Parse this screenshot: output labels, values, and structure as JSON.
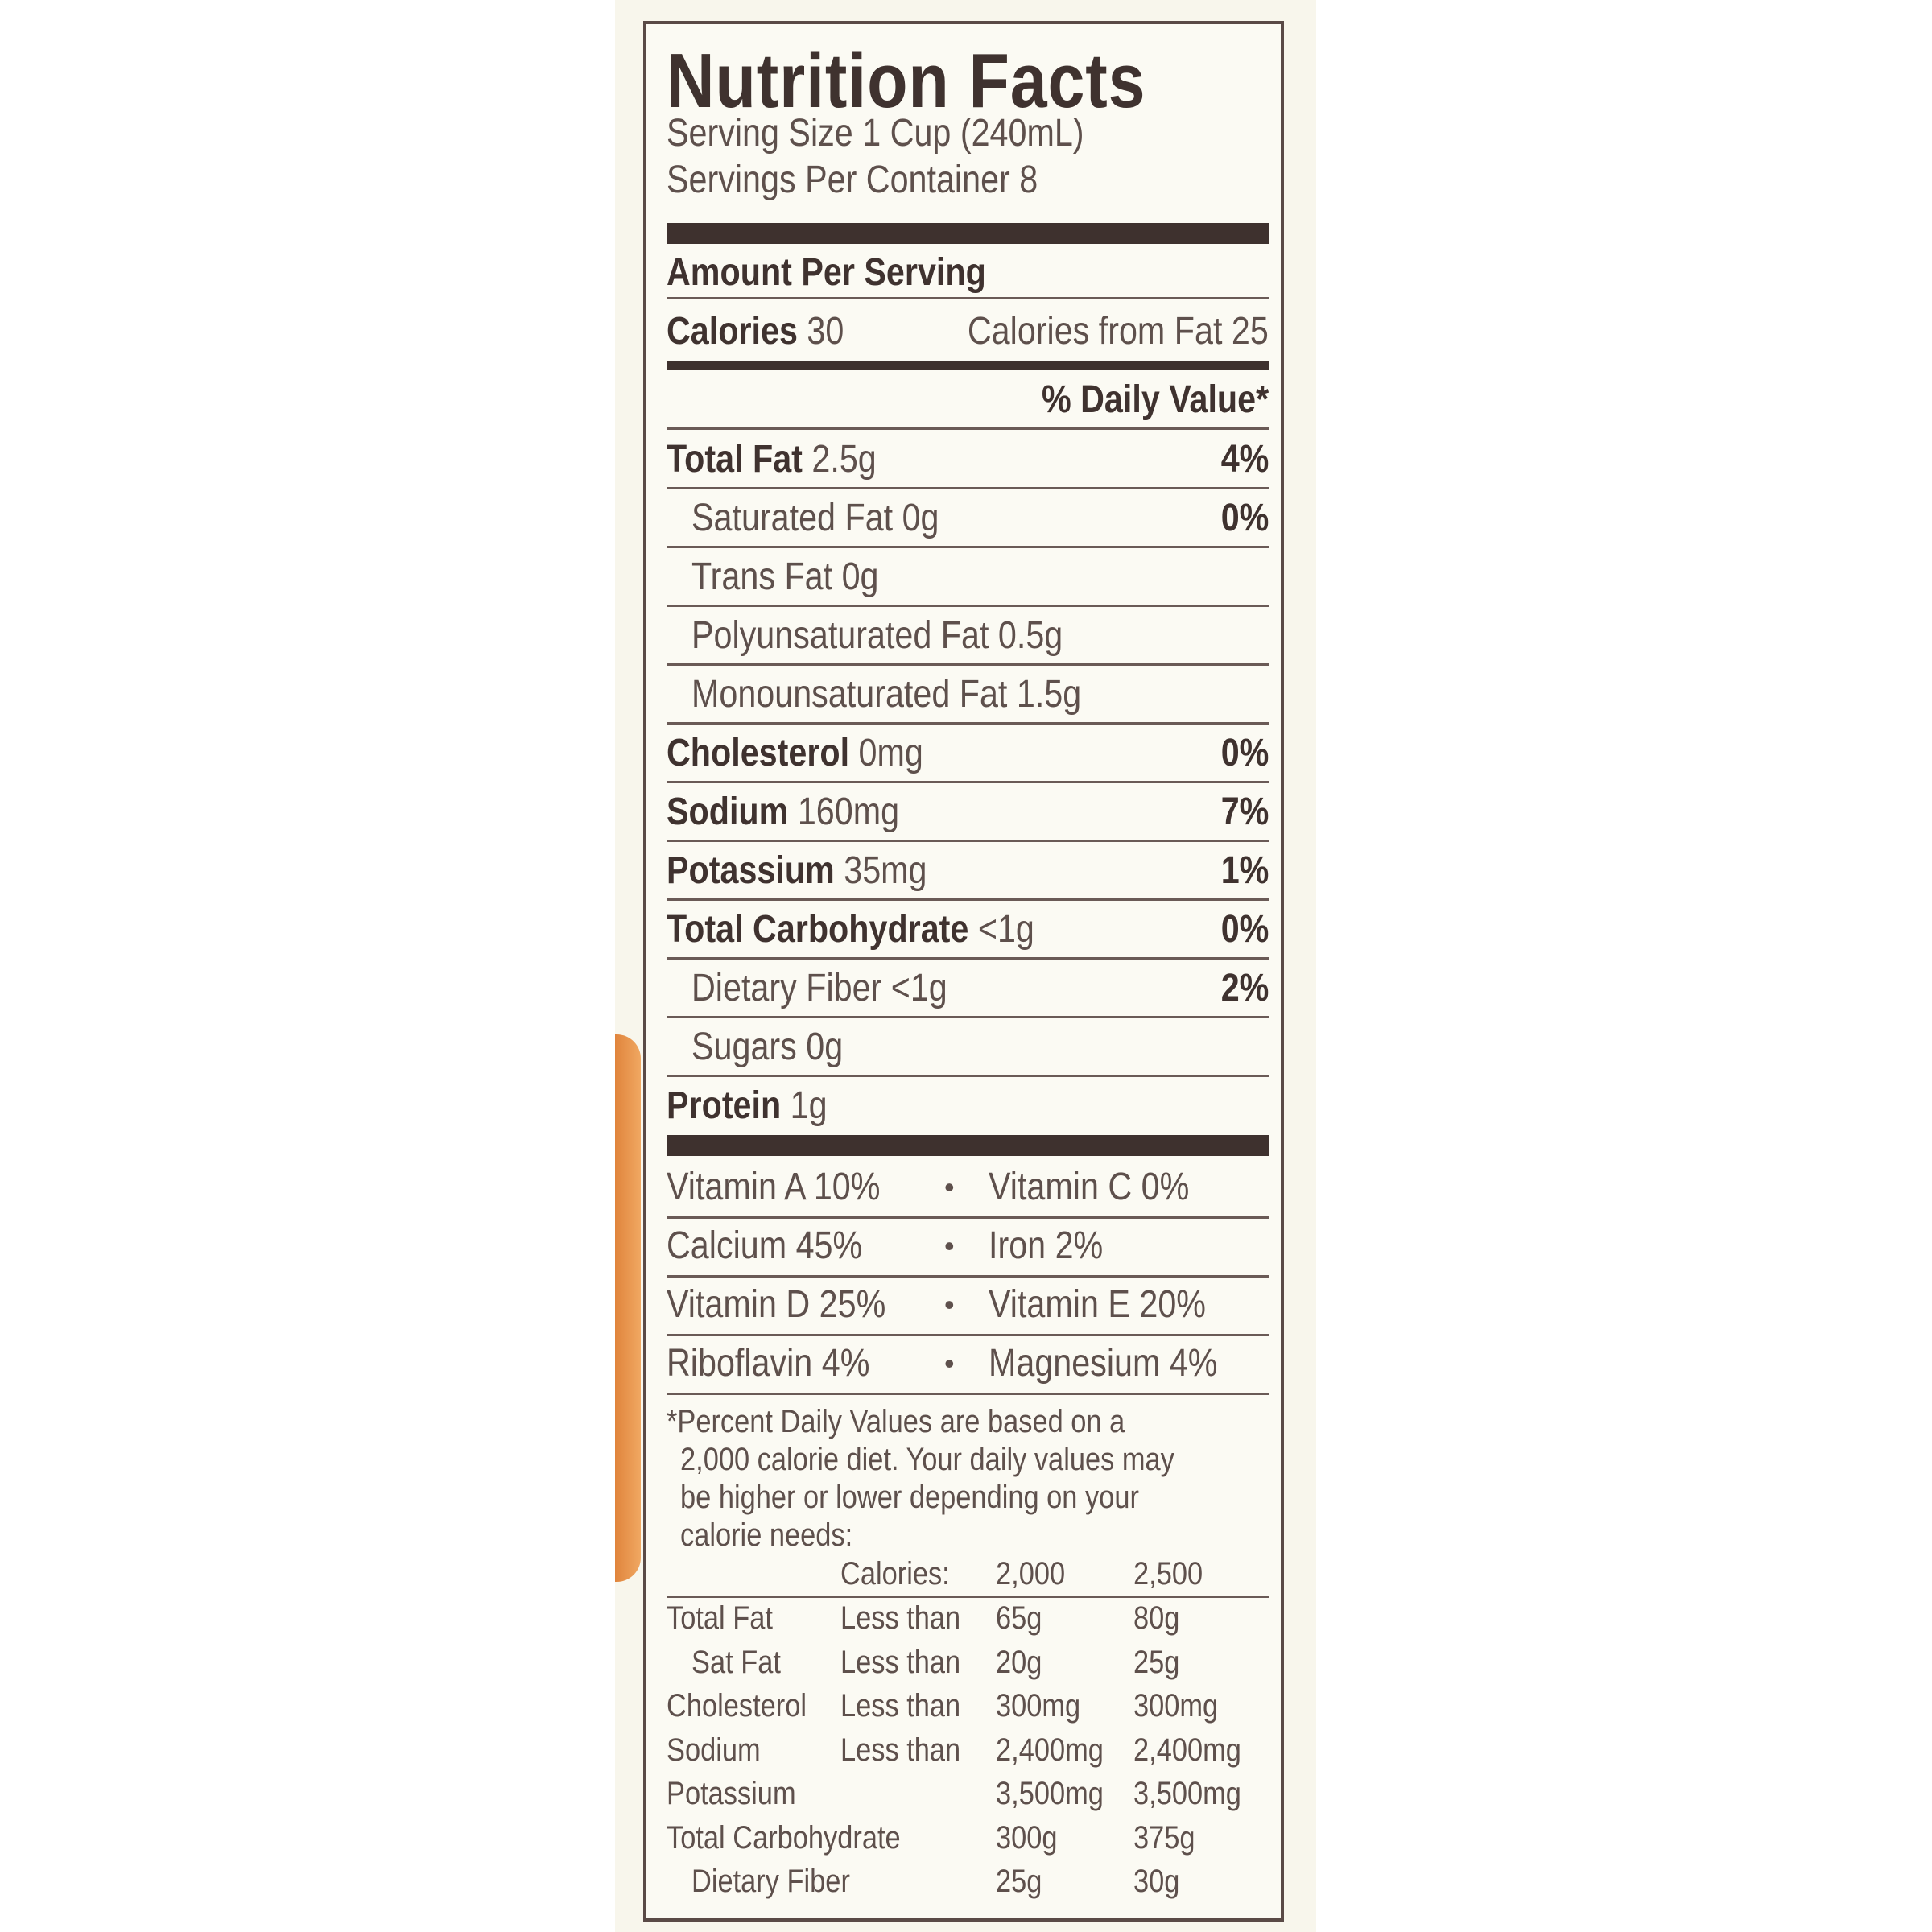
{
  "title": "Nutrition Facts",
  "serving_size": "Serving Size 1 Cup (240mL)",
  "servings_per_container": "Servings Per Container 8",
  "amount_per_serving": "Amount Per Serving",
  "calories": {
    "label": "Calories",
    "value": "30",
    "from_fat": "Calories from Fat 25"
  },
  "daily_value_header": "% Daily Value*",
  "nutrients": [
    {
      "name": "Total Fat",
      "amount": "2.5g",
      "dv": "4%",
      "bold": true,
      "indent": false
    },
    {
      "name": "Saturated Fat 0g",
      "amount": "",
      "dv": "0%",
      "bold": false,
      "indent": true
    },
    {
      "name": "Trans Fat 0g",
      "amount": "",
      "dv": "",
      "bold": false,
      "indent": true
    },
    {
      "name": "Polyunsaturated Fat 0.5g",
      "amount": "",
      "dv": "",
      "bold": false,
      "indent": true
    },
    {
      "name": "Monounsaturated Fat 1.5g",
      "amount": "",
      "dv": "",
      "bold": false,
      "indent": true
    },
    {
      "name": "Cholesterol",
      "amount": "0mg",
      "dv": "0%",
      "bold": true,
      "indent": false
    },
    {
      "name": "Sodium",
      "amount": "160mg",
      "dv": "7%",
      "bold": true,
      "indent": false
    },
    {
      "name": "Potassium",
      "amount": "35mg",
      "dv": "1%",
      "bold": true,
      "indent": false
    },
    {
      "name": "Total Carbohydrate",
      "amount": "<1g",
      "dv": "0%",
      "bold": true,
      "indent": false
    },
    {
      "name": "Dietary Fiber <1g",
      "amount": "",
      "dv": "2%",
      "bold": false,
      "indent": true
    },
    {
      "name": "Sugars 0g",
      "amount": "",
      "dv": "",
      "bold": false,
      "indent": true
    },
    {
      "name": "Protein",
      "amount": "1g",
      "dv": "",
      "bold": true,
      "indent": false
    }
  ],
  "vitamins": [
    [
      "Vitamin A 10%",
      "Vitamin C 0%"
    ],
    [
      "Calcium 45%",
      "Iron 2%"
    ],
    [
      "Vitamin D 25%",
      "Vitamin E 20%"
    ],
    [
      "Riboflavin 4%",
      "Magnesium 4%"
    ]
  ],
  "bullet": "•",
  "footnote": [
    "*Percent Daily Values are based on a",
    "2,000 calorie diet. Your daily values may",
    "be higher or lower depending on your",
    "calorie needs:"
  ],
  "dv_table": {
    "header": [
      "",
      "Calories:",
      "2,000",
      "2,500"
    ],
    "rows": [
      [
        "Total Fat",
        "Less than",
        "65g",
        "80g"
      ],
      [
        " Sat Fat",
        "Less than",
        "20g",
        "25g"
      ],
      [
        "Cholesterol",
        "Less than",
        "300mg",
        "300mg"
      ],
      [
        "Sodium",
        "Less than",
        "2,400mg",
        "2,400mg"
      ],
      [
        "Potassium",
        "",
        "3,500mg",
        "3,500mg"
      ],
      [
        "Total Carbohydrate",
        "",
        "300g",
        "375g"
      ],
      [
        " Dietary Fiber",
        "",
        "25g",
        "30g"
      ]
    ]
  }
}
